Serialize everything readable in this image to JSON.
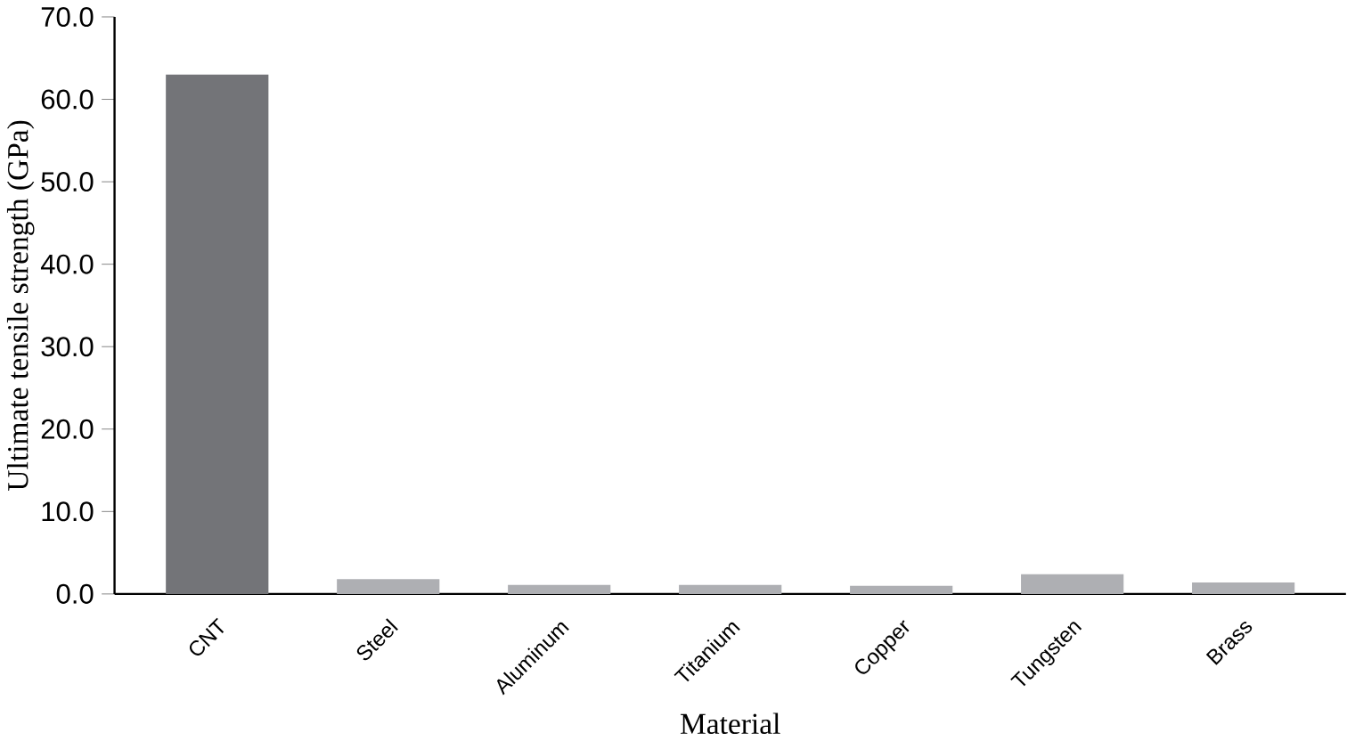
{
  "chart_data": {
    "type": "bar",
    "xlabel": "Material",
    "ylabel": "Ultimate tensile strength (GPa)",
    "categories": [
      "CNT",
      "Steel",
      "Aluminum",
      "Titanium",
      "Copper",
      "Tungsten",
      "Brass"
    ],
    "values": [
      63,
      1.8,
      1.1,
      1.1,
      1.0,
      2.4,
      1.4
    ],
    "colors": [
      "#737478",
      "#aeafb3",
      "#aeafb3",
      "#aeafb3",
      "#aeafb3",
      "#aeafb3",
      "#aeafb3"
    ],
    "ylim": [
      0,
      70
    ],
    "yticks": [
      {
        "value": 0,
        "label": "0.0"
      },
      {
        "value": 10,
        "label": "10.0"
      },
      {
        "value": 20,
        "label": "20.0"
      },
      {
        "value": 30,
        "label": "30.0"
      },
      {
        "value": 40,
        "label": "40.0"
      },
      {
        "value": 50,
        "label": "50.0"
      },
      {
        "value": 60,
        "label": "60.0"
      },
      {
        "value": 70,
        "label": "70.0"
      }
    ],
    "grid": false
  }
}
